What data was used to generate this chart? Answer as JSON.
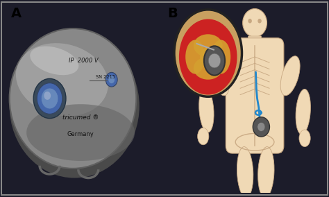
{
  "figure_width": 4.74,
  "figure_height": 2.84,
  "dpi": 100,
  "panel_A_label": "A",
  "panel_B_label": "B",
  "label_color": "black",
  "label_fontsize": 14,
  "label_fontweight": "bold",
  "left_panel": {
    "text_ip": "IP  2000 V",
    "text_sn": "SN 2215",
    "text_brand": "tricumed",
    "text_trademark": "®",
    "text_country": "Germany"
  },
  "right_panel": {
    "inset_bg": "#d4a843",
    "inset_red": "#cc3333",
    "body_color": "#f0d9b5",
    "device_dark": "#555555"
  },
  "overall_bg": "#1c1c2a"
}
